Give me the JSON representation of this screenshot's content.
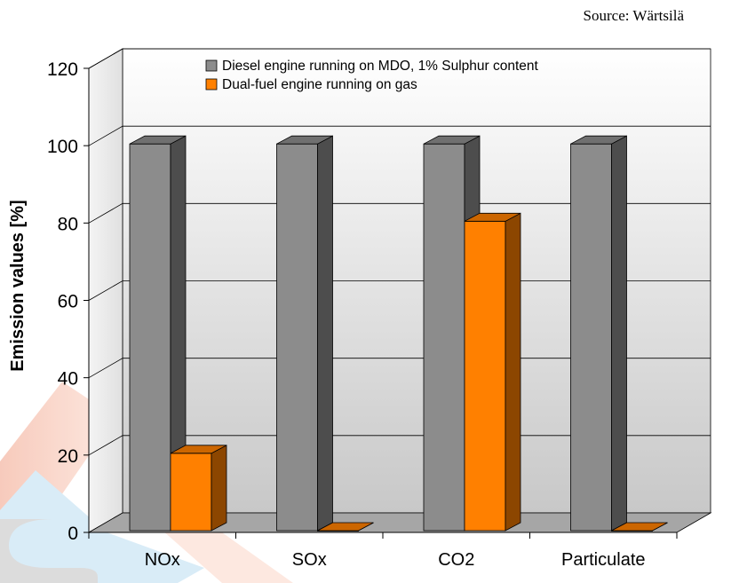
{
  "source": "Source: Wärtsilä",
  "chart_data": {
    "type": "bar",
    "categories": [
      "NOx",
      "SOx",
      "CO2",
      "Particulate"
    ],
    "series": [
      {
        "name": "Diesel engine running on MDO, 1% Sulphur content",
        "values": [
          100,
          100,
          100,
          100
        ],
        "color": "#8c8c8c"
      },
      {
        "name": "Dual-fuel engine running on gas",
        "values": [
          20,
          0,
          80,
          0
        ],
        "color": "#ff8000"
      }
    ],
    "title": "",
    "xlabel": "",
    "ylabel": "Emission values [%]",
    "ylim": [
      0,
      120
    ],
    "yticks": [
      "0",
      "20",
      "40",
      "60",
      "80",
      "100",
      "120"
    ],
    "grid": true,
    "legend": "top-right, inside plot",
    "style": "3D clustered columns"
  }
}
